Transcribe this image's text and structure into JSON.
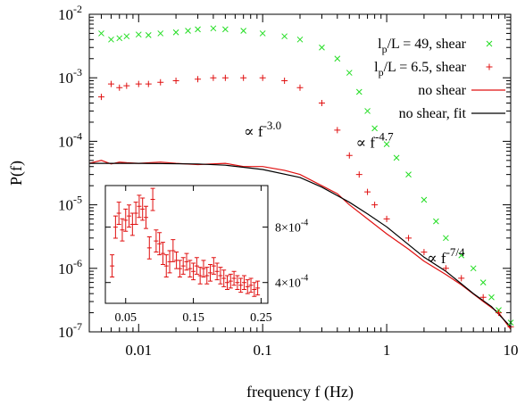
{
  "chart_data": {
    "type": "scatter",
    "xlabel": "frequency f (Hz)",
    "ylabel": "P(f)",
    "xscale": "log",
    "yscale": "log",
    "xlim": [
      0.004,
      10
    ],
    "ylim": [
      1e-07,
      0.01
    ],
    "x_ticks": [
      {
        "value": 0.01,
        "label": "0.01"
      },
      {
        "value": 0.1,
        "label": "0.1"
      },
      {
        "value": 1,
        "label": "1"
      },
      {
        "value": 10,
        "label": "10"
      }
    ],
    "y_ticks": [
      {
        "value": 1e-07,
        "base": "10",
        "exp": "-7"
      },
      {
        "value": 1e-06,
        "base": "10",
        "exp": "-6"
      },
      {
        "value": 1e-05,
        "base": "10",
        "exp": "-5"
      },
      {
        "value": 0.0001,
        "base": "10",
        "exp": "-4"
      },
      {
        "value": 0.001,
        "base": "10",
        "exp": "-3"
      },
      {
        "value": 0.01,
        "base": "10",
        "exp": "-2"
      }
    ],
    "legend_position": "top-right",
    "legend": [
      {
        "l": "l",
        "sub": "p",
        "rest": "/L = 49,  shear",
        "marker": "x",
        "color": "#22dd22"
      },
      {
        "l": "l",
        "sub": "p",
        "rest": "/L = 6.5, shear",
        "marker": "+",
        "color": "#e01010"
      },
      {
        "text": "no shear",
        "marker": "line",
        "color": "#e01010"
      },
      {
        "text": "no shear, fit",
        "marker": "line",
        "color": "#000000"
      }
    ],
    "series": [
      {
        "name": "lp/L = 49, shear",
        "marker": "x",
        "color": "#22dd22",
        "points": [
          [
            0.005,
            0.005
          ],
          [
            0.006,
            0.004
          ],
          [
            0.007,
            0.0042
          ],
          [
            0.008,
            0.0045
          ],
          [
            0.01,
            0.0048
          ],
          [
            0.012,
            0.0047
          ],
          [
            0.015,
            0.005
          ],
          [
            0.02,
            0.0052
          ],
          [
            0.025,
            0.0055
          ],
          [
            0.03,
            0.0058
          ],
          [
            0.04,
            0.006
          ],
          [
            0.05,
            0.0058
          ],
          [
            0.07,
            0.0055
          ],
          [
            0.1,
            0.005
          ],
          [
            0.15,
            0.0045
          ],
          [
            0.2,
            0.004
          ],
          [
            0.3,
            0.003
          ],
          [
            0.4,
            0.002
          ],
          [
            0.5,
            0.0012
          ],
          [
            0.6,
            0.0006
          ],
          [
            0.7,
            0.0003
          ],
          [
            0.8,
            0.00016
          ],
          [
            1.0,
            9e-05
          ],
          [
            1.2,
            5.5e-05
          ],
          [
            1.5,
            3e-05
          ],
          [
            2,
            1.2e-05
          ],
          [
            2.5,
            5.5e-06
          ],
          [
            3,
            3e-06
          ],
          [
            4,
            1.6e-06
          ],
          [
            5,
            1e-06
          ],
          [
            6,
            6e-07
          ],
          [
            7,
            3.5e-07
          ],
          [
            8,
            2.2e-07
          ],
          [
            10,
            1.4e-07
          ]
        ]
      },
      {
        "name": "lp/L = 6.5, shear",
        "marker": "+",
        "color": "#e01010",
        "points": [
          [
            0.005,
            0.0005
          ],
          [
            0.006,
            0.0008
          ],
          [
            0.007,
            0.0007
          ],
          [
            0.008,
            0.00075
          ],
          [
            0.01,
            0.0008
          ],
          [
            0.012,
            0.0008
          ],
          [
            0.015,
            0.00085
          ],
          [
            0.02,
            0.0009
          ],
          [
            0.03,
            0.00095
          ],
          [
            0.04,
            0.001
          ],
          [
            0.05,
            0.001
          ],
          [
            0.07,
            0.001
          ],
          [
            0.1,
            0.001
          ],
          [
            0.15,
            0.0009
          ],
          [
            0.2,
            0.0007
          ],
          [
            0.3,
            0.0004
          ],
          [
            0.4,
            0.00015
          ],
          [
            0.5,
            6e-05
          ],
          [
            0.6,
            3e-05
          ],
          [
            0.7,
            1.6e-05
          ],
          [
            0.8,
            1e-05
          ],
          [
            1.0,
            6e-06
          ],
          [
            1.5,
            3e-06
          ],
          [
            2,
            1.8e-06
          ],
          [
            3,
            1e-06
          ],
          [
            4,
            7e-07
          ],
          [
            6,
            3.5e-07
          ],
          [
            8,
            2e-07
          ],
          [
            10,
            1.2e-07
          ]
        ]
      },
      {
        "name": "no shear",
        "marker": "line",
        "color": "#e01010",
        "points": [
          [
            0.004,
            4.5e-05
          ],
          [
            0.005,
            5e-05
          ],
          [
            0.006,
            4.4e-05
          ],
          [
            0.007,
            4.7e-05
          ],
          [
            0.008,
            4.6e-05
          ],
          [
            0.01,
            4.5e-05
          ],
          [
            0.015,
            4.7e-05
          ],
          [
            0.02,
            4.5e-05
          ],
          [
            0.03,
            4.3e-05
          ],
          [
            0.05,
            4.5e-05
          ],
          [
            0.07,
            4e-05
          ],
          [
            0.1,
            4e-05
          ],
          [
            0.15,
            3.5e-05
          ],
          [
            0.2,
            3e-05
          ],
          [
            0.3,
            2e-05
          ],
          [
            0.4,
            1.5e-05
          ],
          [
            0.5,
            1e-05
          ],
          [
            0.7,
            6e-06
          ],
          [
            1.0,
            3.5e-06
          ],
          [
            1.5,
            2e-06
          ],
          [
            2,
            1.3e-06
          ],
          [
            3,
            8e-07
          ],
          [
            4,
            5.5e-07
          ],
          [
            6,
            3e-07
          ],
          [
            8,
            2e-07
          ],
          [
            10,
            1.1e-07
          ]
        ]
      },
      {
        "name": "no shear, fit",
        "marker": "line",
        "color": "#000000",
        "points": [
          [
            0.004,
            4.5e-05
          ],
          [
            0.01,
            4.5e-05
          ],
          [
            0.03,
            4.4e-05
          ],
          [
            0.05,
            4.2e-05
          ],
          [
            0.1,
            3.6e-05
          ],
          [
            0.2,
            2.7e-05
          ],
          [
            0.3,
            1.9e-05
          ],
          [
            0.5,
            1.1e-05
          ],
          [
            0.7,
            7.2e-06
          ],
          [
            1.0,
            4.5e-06
          ],
          [
            2,
            1.5e-06
          ],
          [
            3,
            9e-07
          ],
          [
            5,
            4e-07
          ],
          [
            7,
            2.5e-07
          ],
          [
            10,
            1.2e-07
          ]
        ]
      }
    ],
    "annotations": [
      {
        "prefix": "∝ f",
        "exp": "-3.0",
        "x": 0.1,
        "y": 0.00012
      },
      {
        "prefix": "∝ f",
        "exp": "-4.7",
        "x": 0.8,
        "y": 8e-05
      },
      {
        "prefix": "∝ f",
        "exp": "-7/4",
        "x": 3.0,
        "y": 1.2e-06
      }
    ],
    "inset": {
      "type": "scatter",
      "series_name": "lp/L = 6.5, shear",
      "xlim": [
        0.02,
        0.26
      ],
      "ylim": [
        0.00025,
        0.0011
      ],
      "x_ticks": [
        {
          "value": 0.05,
          "label": "0.05"
        },
        {
          "value": 0.15,
          "label": "0.15"
        },
        {
          "value": 0.25,
          "label": "0.25"
        }
      ],
      "y_ticks": [
        {
          "value": 0.0004,
          "mant": "4",
          "base": "10",
          "exp": "-4"
        },
        {
          "value": 0.0008,
          "mant": "8",
          "base": "10",
          "exp": "-4"
        }
      ],
      "points": [
        [
          0.03,
          0.00052,
          8e-05
        ],
        [
          0.035,
          0.0008,
          8e-05
        ],
        [
          0.04,
          0.0009,
          8e-05
        ],
        [
          0.045,
          0.00078,
          8e-05
        ],
        [
          0.05,
          0.00085,
          8e-05
        ],
        [
          0.055,
          0.00088,
          8e-05
        ],
        [
          0.06,
          0.00082,
          8e-05
        ],
        [
          0.065,
          0.0009,
          8e-05
        ],
        [
          0.07,
          0.00095,
          8e-05
        ],
        [
          0.075,
          0.00093,
          8e-05
        ],
        [
          0.08,
          0.00087,
          8e-05
        ],
        [
          0.085,
          0.00065,
          8e-05
        ],
        [
          0.09,
          0.001,
          8e-05
        ],
        [
          0.095,
          0.0007,
          8e-05
        ],
        [
          0.1,
          0.00068,
          8e-05
        ],
        [
          0.105,
          0.00061,
          8e-05
        ],
        [
          0.11,
          0.00052,
          8e-05
        ],
        [
          0.115,
          0.00055,
          8e-05
        ],
        [
          0.12,
          0.00063,
          8e-05
        ],
        [
          0.125,
          0.00056,
          6e-05
        ],
        [
          0.13,
          0.0005,
          6e-05
        ],
        [
          0.135,
          0.00052,
          6e-05
        ],
        [
          0.14,
          0.00055,
          6e-05
        ],
        [
          0.145,
          0.0005,
          6e-05
        ],
        [
          0.15,
          0.00048,
          6e-05
        ],
        [
          0.155,
          0.00052,
          6e-05
        ],
        [
          0.16,
          0.00045,
          6e-05
        ],
        [
          0.165,
          0.0005,
          6e-05
        ],
        [
          0.17,
          0.00045,
          6e-05
        ],
        [
          0.175,
          0.00047,
          6e-05
        ],
        [
          0.18,
          0.00052,
          6e-05
        ],
        [
          0.185,
          0.00048,
          6e-05
        ],
        [
          0.19,
          0.00045,
          6e-05
        ],
        [
          0.195,
          0.00043,
          6e-05
        ],
        [
          0.2,
          0.0004,
          5e-05
        ],
        [
          0.205,
          0.00041,
          5e-05
        ],
        [
          0.21,
          0.00043,
          5e-05
        ],
        [
          0.215,
          0.0004,
          5e-05
        ],
        [
          0.22,
          0.00038,
          5e-05
        ],
        [
          0.225,
          0.0004,
          5e-05
        ],
        [
          0.23,
          0.00037,
          5e-05
        ],
        [
          0.235,
          0.00038,
          5e-05
        ],
        [
          0.24,
          0.00035,
          5e-05
        ],
        [
          0.245,
          0.00036,
          5e-05
        ]
      ]
    }
  }
}
